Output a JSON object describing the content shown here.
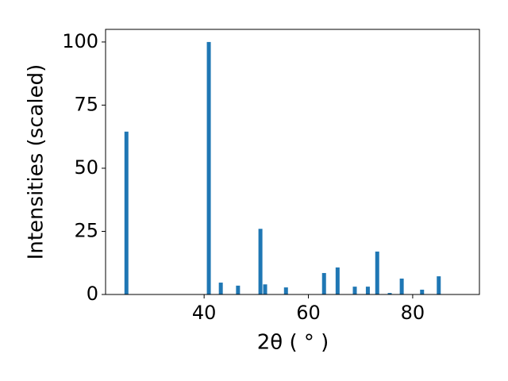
{
  "chart_data": {
    "type": "bar",
    "x_label": "2θ ( ° )",
    "y_label": "Intensities (scaled)",
    "x": [
      25.1,
      40.9,
      43.2,
      46.5,
      50.8,
      51.7,
      55.7,
      63.0,
      65.6,
      68.9,
      71.4,
      73.2,
      75.6,
      77.9,
      81.8,
      85.0
    ],
    "values": [
      64.5,
      100,
      4.7,
      3.5,
      26,
      4,
      2.8,
      8.5,
      10.7,
      3.1,
      3.1,
      17,
      0.6,
      6.3,
      1.9,
      7.2
    ],
    "color": "#1f77b4",
    "xlim": [
      21.1,
      92.8
    ],
    "xticks": [
      40,
      60,
      80
    ],
    "ylim": [
      0,
      105
    ],
    "yticks": [
      0,
      25,
      50,
      75,
      100
    ],
    "grid": false
  }
}
